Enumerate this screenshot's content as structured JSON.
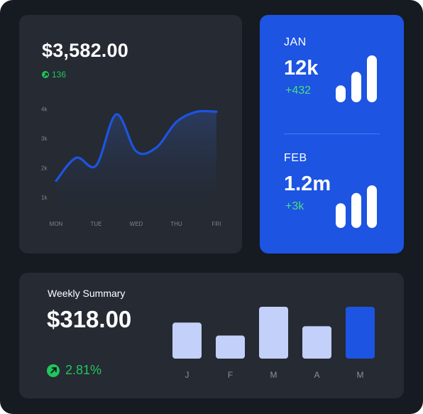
{
  "revenue_card": {
    "amount": "$3,582.00",
    "change": "136",
    "change_icon": "arrow-up-right-icon"
  },
  "chart_data": [
    {
      "type": "area",
      "categories": [
        "MON",
        "TUE",
        "WED",
        "THU",
        "FRI"
      ],
      "yticks": [
        "1k",
        "2k",
        "3k",
        "4k"
      ],
      "ylim": [
        1000,
        4000
      ],
      "x": [
        0,
        0.5,
        1,
        1.5,
        2,
        2.5,
        3,
        3.5,
        4
      ],
      "values": [
        1400,
        2300,
        2000,
        4000,
        2550,
        2700,
        3700,
        4100,
        4100
      ],
      "line_color": "#1d54e2"
    },
    {
      "type": "bar",
      "categories": [
        "J",
        "F",
        "M",
        "A",
        "M"
      ],
      "values": [
        50,
        32,
        72,
        45,
        72
      ],
      "highlight_index": 4,
      "bar_color": "#c2d0fa",
      "highlight_color": "#1d54e2"
    }
  ],
  "months": [
    {
      "label": "JAN",
      "value": "12k",
      "delta": "+432",
      "bars": [
        0.36,
        0.65,
        1.0
      ]
    },
    {
      "label": "FEB",
      "value": "1.2m",
      "delta": "+3k",
      "bars": [
        0.58,
        0.82,
        1.0
      ]
    }
  ],
  "weekly": {
    "title": "Weekly Summary",
    "amount": "$318.00",
    "change": "2.81%",
    "change_icon": "arrow-up-right-icon"
  },
  "colors": {
    "background": "#161a21",
    "card": "#252a33",
    "accent": "#1d54e2",
    "positive": "#22c55e"
  }
}
